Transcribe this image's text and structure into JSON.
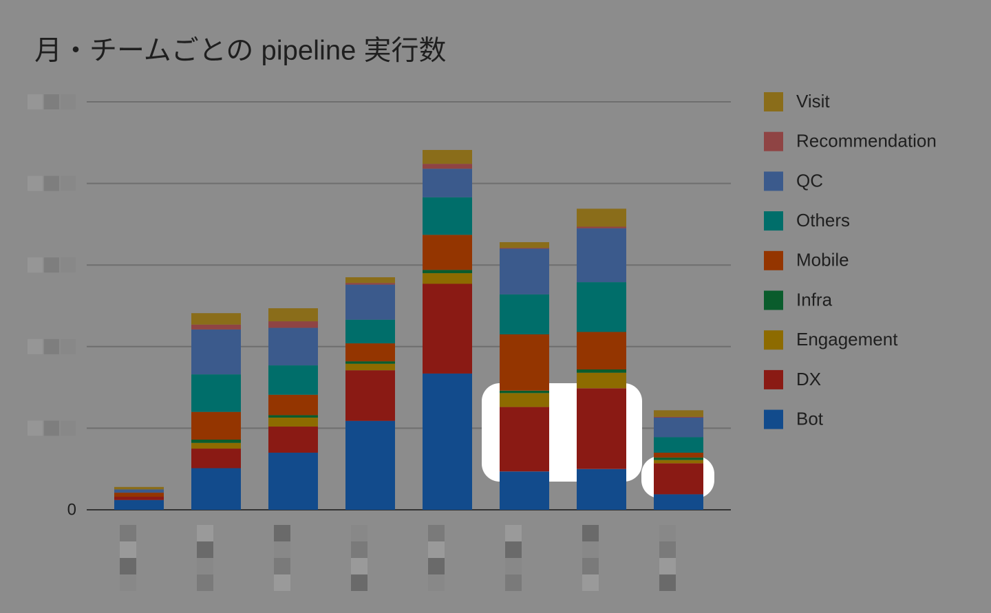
{
  "chart_data": {
    "type": "stacked-bar",
    "title": "月・チームごとの pipeline 実行数",
    "categories": [
      null,
      null,
      null,
      null,
      null,
      null,
      null,
      null
    ],
    "ylim": [
      0,
      500
    ],
    "yticks": [
      0,
      {
        "value": 100,
        "label": null
      },
      {
        "value": 200,
        "label": null
      },
      {
        "value": 300,
        "label": null
      },
      {
        "value": 400,
        "label": null
      },
      {
        "value": 500,
        "label": null
      }
    ],
    "grid": true,
    "legend": "right",
    "series": [
      {
        "name": "Bot",
        "color": "#124b8c",
        "values": [
          12,
          51,
          70,
          109,
          167,
          47,
          50,
          19
        ]
      },
      {
        "name": "DX",
        "color": "#8a1a14",
        "values": [
          4,
          24,
          32,
          62,
          110,
          79,
          99,
          38
        ]
      },
      {
        "name": "Engagement",
        "color": "#8d6b00",
        "values": [
          0,
          7,
          11,
          8,
          13,
          17,
          19,
          4
        ]
      },
      {
        "name": "Infra",
        "color": "#0a5c2c",
        "values": [
          0,
          4,
          3,
          3,
          4,
          3,
          4,
          3
        ]
      },
      {
        "name": "Mobile",
        "color": "#943500",
        "values": [
          5,
          34,
          25,
          22,
          43,
          69,
          46,
          6
        ]
      },
      {
        "name": "Others",
        "color": "#006e6a",
        "values": [
          0,
          46,
          36,
          29,
          46,
          49,
          61,
          19
        ]
      },
      {
        "name": "QC",
        "color": "#3b5a8c",
        "values": [
          4,
          55,
          46,
          43,
          35,
          56,
          66,
          24
        ]
      },
      {
        "name": "Recommendation",
        "color": "#8f4444",
        "values": [
          0,
          6,
          8,
          2,
          6,
          1,
          2,
          1
        ]
      },
      {
        "name": "Visit",
        "color": "#8a6d1a",
        "values": [
          3,
          14,
          16,
          7,
          17,
          7,
          22,
          8
        ]
      }
    ]
  }
}
